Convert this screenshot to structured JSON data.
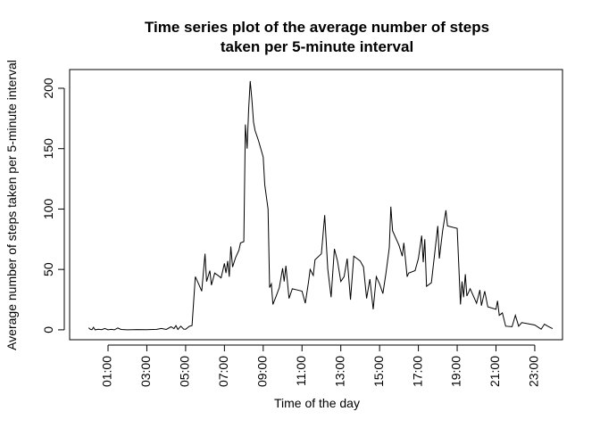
{
  "chart_data": {
    "type": "line",
    "title": [
      "Time series plot of the average number of steps",
      "taken per 5-minute interval"
    ],
    "xlabel": "Time of the day",
    "ylabel": "Average number of steps taken per 5-minute interval",
    "color": "#000000",
    "xlim": [
      -0.98,
      24.43
    ],
    "ylim": [
      -8.2,
      215.5
    ],
    "xticks": [
      {
        "value": 1,
        "label": "01:00"
      },
      {
        "value": 3,
        "label": "03:00"
      },
      {
        "value": 5,
        "label": "05:00"
      },
      {
        "value": 7,
        "label": "07:00"
      },
      {
        "value": 9,
        "label": "09:00"
      },
      {
        "value": 11,
        "label": "11:00"
      },
      {
        "value": 13,
        "label": "13:00"
      },
      {
        "value": 15,
        "label": "15:00"
      },
      {
        "value": 17,
        "label": "17:00"
      },
      {
        "value": 19,
        "label": "19:00"
      },
      {
        "value": 21,
        "label": "21:00"
      },
      {
        "value": 23,
        "label": "23:00"
      }
    ],
    "yticks": [
      0,
      50,
      100,
      150,
      200
    ],
    "x": [
      0,
      0.1,
      0.17,
      0.25,
      0.33,
      0.5,
      0.67,
      0.83,
      1.0,
      1.17,
      1.33,
      1.5,
      1.67,
      2.0,
      2.5,
      3.0,
      3.5,
      3.75,
      4.0,
      4.25,
      4.4,
      4.5,
      4.6,
      4.75,
      4.9,
      5.0,
      5.2,
      5.33,
      5.5,
      5.67,
      5.83,
      6.0,
      6.08,
      6.25,
      6.33,
      6.5,
      6.67,
      6.83,
      7.0,
      7.08,
      7.17,
      7.25,
      7.33,
      7.42,
      7.58,
      7.75,
      7.83,
      8.0,
      8.08,
      8.17,
      8.25,
      8.33,
      8.42,
      8.5,
      8.58,
      8.75,
      9.0,
      9.08,
      9.25,
      9.33,
      9.42,
      9.5,
      9.67,
      9.83,
      10.0,
      10.08,
      10.17,
      10.33,
      10.5,
      10.75,
      11.0,
      11.17,
      11.33,
      11.42,
      11.58,
      11.67,
      12.0,
      12.17,
      12.33,
      12.5,
      12.67,
      12.83,
      13.0,
      13.17,
      13.33,
      13.5,
      13.67,
      14.0,
      14.17,
      14.33,
      14.5,
      14.67,
      14.83,
      15.0,
      15.17,
      15.33,
      15.5,
      15.58,
      15.67,
      16.0,
      16.17,
      16.25,
      16.42,
      16.5,
      16.83,
      17.0,
      17.17,
      17.25,
      17.33,
      17.42,
      17.67,
      18.0,
      18.08,
      18.25,
      18.42,
      18.5,
      19.0,
      19.17,
      19.25,
      19.33,
      19.42,
      19.5,
      19.67,
      20.0,
      20.17,
      20.25,
      20.42,
      20.58,
      21.0,
      21.08,
      21.17,
      21.33,
      21.5,
      21.83,
      22.0,
      22.17,
      22.33,
      23.0,
      23.33,
      23.5,
      23.67,
      23.92
    ],
    "values": [
      1.7,
      0.3,
      0.1,
      2.1,
      0,
      0.5,
      0.1,
      1.1,
      0,
      0.4,
      0,
      1.5,
      0.3,
      0,
      0.2,
      0.1,
      0.4,
      1.1,
      0.3,
      2.5,
      1,
      3.5,
      0.3,
      3,
      0.6,
      0.5,
      3,
      3.5,
      44,
      38,
      32,
      63,
      40,
      49,
      37,
      47,
      45,
      43,
      55,
      47,
      57,
      44,
      69,
      52,
      60,
      66,
      72,
      73,
      170,
      150,
      183,
      206,
      190,
      172,
      165,
      157,
      143,
      120,
      100,
      35,
      38,
      21,
      28,
      35,
      51,
      40,
      53,
      26,
      34,
      33,
      32,
      22,
      39,
      50,
      45,
      58,
      63,
      95,
      50,
      27,
      67,
      57,
      40,
      44,
      59,
      25,
      61,
      57,
      52,
      26,
      42,
      17,
      44,
      38,
      30,
      47,
      68,
      102,
      82,
      70,
      61,
      72,
      44,
      47,
      49,
      59,
      78,
      56,
      75,
      36,
      39,
      86,
      59,
      82,
      99,
      86,
      84,
      21,
      40,
      27,
      46,
      28,
      34,
      22,
      33,
      20,
      32,
      19,
      17,
      24,
      12,
      14,
      3,
      2.6,
      12,
      3,
      6,
      4,
      0.5,
      4.7,
      3,
      1
    ]
  }
}
